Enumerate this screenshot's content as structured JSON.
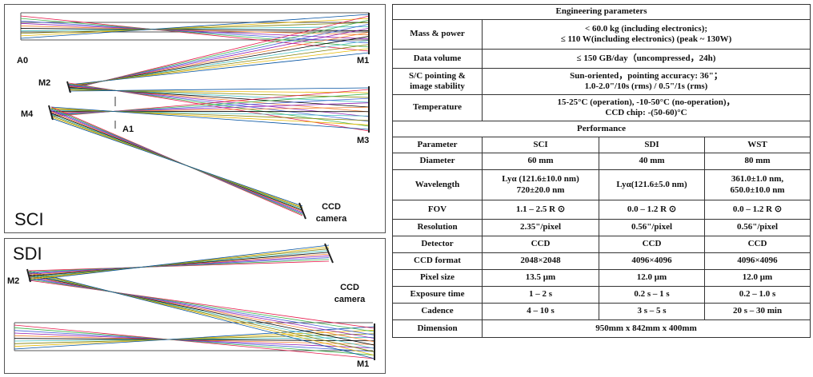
{
  "sci_panel": {
    "title": "SCI",
    "labels": {
      "a0": "A0",
      "a1": "A1",
      "m1": "M1",
      "m2": "M2",
      "m3": "M3",
      "m4": "M4"
    },
    "camera_line1": "CCD",
    "camera_line2": "camera"
  },
  "sdi_panel": {
    "title": "SDI",
    "labels": {
      "m1": "M1",
      "m2": "M2"
    },
    "camera_line1": "CCD",
    "camera_line2": "camera"
  },
  "ray_colors": [
    "#e6194b",
    "#3cb44b",
    "#4363d8",
    "#911eb4",
    "#f58231",
    "#000000",
    "#46c0c0",
    "#808000",
    "#e6b800",
    "#0050a0"
  ],
  "engineering": {
    "title": "Engineering parameters",
    "rows": [
      {
        "label": "Mass & power",
        "value": "< 60.0 kg (including electronics);\n≤ 110 W(including electronics) (peak ~ 130W)"
      },
      {
        "label": "Data volume",
        "value": "≤ 150 GB/day（uncompressed，24h)"
      },
      {
        "label": "S/C pointing &\nimage stability",
        "value": "Sun-oriented，pointing accuracy: 36\"；\n1.0-2.0\"/10s (rms) / 0.5\"/1s (rms)"
      },
      {
        "label": "Temperature",
        "value": "15-25°C (operation), -10-50°C (no-operation)，\nCCD chip: -(50-60)°C"
      }
    ]
  },
  "performance": {
    "title": "Performance",
    "header": [
      "Parameter",
      "SCI",
      "SDI",
      "WST"
    ],
    "rows": [
      [
        "Diameter",
        "60 mm",
        "40 mm",
        "80 mm"
      ],
      [
        "Wavelength",
        "Lyα (121.6±10.0 nm)\n720±20.0 nm",
        "Lyα(121.6±5.0 nm)",
        "361.0±1.0 nm,\n650.0±10.0 nm"
      ],
      [
        "FOV",
        "1.1 – 2.5 R ⊙",
        "0.0 – 1.2 R ⊙",
        "0.0 – 1.2 R ⊙"
      ],
      [
        "Resolution",
        "2.35\"/pixel",
        "0.56\"/pixel",
        "0.56\"/pixel"
      ],
      [
        "Detector",
        "CCD",
        "CCD",
        "CCD"
      ],
      [
        "CCD format",
        "2048×2048",
        "4096×4096",
        "4096×4096"
      ],
      [
        "Pixel size",
        "13.5 μm",
        "12.0 μm",
        "12.0 μm"
      ],
      [
        "Exposure time",
        "1 – 2 s",
        "0.2 s – 1 s",
        "0.2 – 1.0 s"
      ],
      [
        "Cadence",
        "4 – 10 s",
        "3 s – 5 s",
        "20 s – 30 min"
      ]
    ],
    "dimension_label": "Dimension",
    "dimension_value": "950mm x 842mm x 400mm"
  }
}
